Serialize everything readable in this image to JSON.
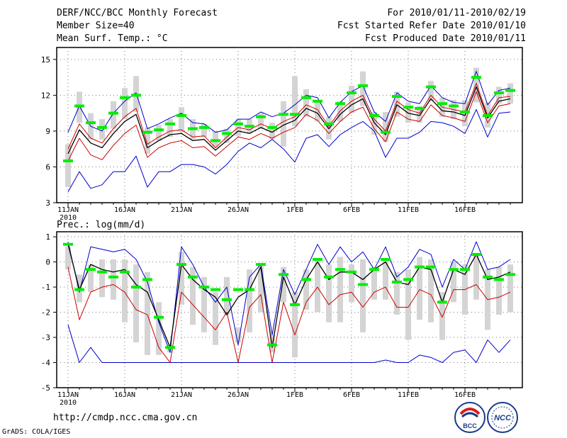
{
  "header": {
    "title": "DERF/NCC/BCC Monthly Forecast",
    "member": "Member Size=40",
    "variable": "Mean Surf. Temp.: °C",
    "period": "For 2010/01/11-2010/02/19",
    "started": "Fcst Started Refer Date 2010/01/10",
    "produced": "Fcst Produced Date 2010/01/11"
  },
  "footer": {
    "url": "http://cmdp.ncc.cma.gov.cn",
    "credit": "GrADS: COLA/IGES",
    "logo_bcc": "BCC",
    "logo_ncc": "NCC"
  },
  "colors": {
    "ensemble_mean": "#000000",
    "envelope": "#0000cc",
    "percentile": "#cc0000",
    "marker": "#00ee00",
    "box": "#d4d4d4",
    "grid": "#777777"
  },
  "chart_data": [
    {
      "type": "line",
      "title": "Mean Surf. Temp.: °C",
      "xlabel": "",
      "ylabel": "",
      "x_ticks": [
        "11JAN",
        "16JAN",
        "21JAN",
        "26JAN",
        "1FEB",
        "6FEB",
        "11FEB",
        "16FEB"
      ],
      "x_year": "2010",
      "days": 40,
      "ylim": [
        3,
        16
      ],
      "y_ticks": [
        3,
        6,
        9,
        12,
        15
      ],
      "series": [
        {
          "name": "ensemble-max",
          "values": [
            8.9,
            11.1,
            9.4,
            9.0,
            10.5,
            11.5,
            12.2,
            9.2,
            9.6,
            10.1,
            10.5,
            9.7,
            9.6,
            8.9,
            9.1,
            10.0,
            10.0,
            10.6,
            10.2,
            10.5,
            11.2,
            12.0,
            11.8,
            10.1,
            11.4,
            12.3,
            12.8,
            10.6,
            9.8,
            12.2,
            11.5,
            11.3,
            12.8,
            11.8,
            11.4,
            11.3,
            14.0,
            11.2,
            12.4,
            12.6
          ]
        },
        {
          "name": "percentile-high",
          "values": [
            7.5,
            9.6,
            8.4,
            8.0,
            9.2,
            10.2,
            10.9,
            7.9,
            8.5,
            9.0,
            9.1,
            8.5,
            8.6,
            7.6,
            8.5,
            9.3,
            9.1,
            9.6,
            9.2,
            9.8,
            10.2,
            11.2,
            10.8,
            9.4,
            10.7,
            11.5,
            12.0,
            10.0,
            9.0,
            11.5,
            10.8,
            10.5,
            12.0,
            11.0,
            10.8,
            10.6,
            13.0,
            10.3,
            11.8,
            11.9
          ]
        },
        {
          "name": "ensemble-mean",
          "values": [
            7.1,
            9.1,
            8.0,
            7.6,
            8.8,
            9.8,
            10.4,
            7.6,
            8.2,
            8.7,
            8.8,
            8.2,
            8.3,
            7.4,
            8.2,
            9.0,
            8.8,
            9.3,
            8.9,
            9.5,
            9.9,
            10.9,
            10.5,
            9.2,
            10.4,
            11.2,
            11.7,
            9.7,
            8.7,
            11.2,
            10.5,
            10.3,
            11.7,
            10.7,
            10.6,
            10.3,
            12.7,
            10.1,
            11.5,
            11.7
          ]
        },
        {
          "name": "percentile-low",
          "values": [
            6.5,
            8.4,
            7.0,
            6.6,
            7.8,
            8.8,
            9.5,
            6.8,
            7.6,
            8.0,
            8.2,
            7.6,
            7.7,
            6.9,
            7.7,
            8.5,
            8.3,
            8.8,
            8.4,
            8.9,
            9.3,
            10.4,
            9.9,
            8.8,
            9.8,
            10.6,
            11.0,
            9.2,
            8.1,
            10.6,
            10.0,
            9.8,
            11.2,
            10.3,
            10.1,
            9.8,
            12.3,
            9.7,
            11.1,
            11.3
          ]
        },
        {
          "name": "ensemble-min",
          "values": [
            3.9,
            5.6,
            4.2,
            4.5,
            5.6,
            5.6,
            6.9,
            4.3,
            5.6,
            5.6,
            6.2,
            6.2,
            6.0,
            5.4,
            6.2,
            7.3,
            8.0,
            7.6,
            8.3,
            7.5,
            6.4,
            8.4,
            8.7,
            7.7,
            8.7,
            9.3,
            9.8,
            9.0,
            6.8,
            8.4,
            8.4,
            8.9,
            9.8,
            9.7,
            9.4,
            8.8,
            10.8,
            8.5,
            10.5,
            10.6
          ]
        },
        {
          "name": "box-high",
          "values": [
            7.9,
            12.3,
            10.5,
            10.0,
            11.5,
            12.6,
            13.6,
            9.3,
            9.5,
            10.0,
            11.0,
            10.0,
            9.6,
            9.0,
            9.2,
            10.0,
            10.0,
            10.5,
            9.7,
            11.5,
            13.6,
            12.5,
            11.6,
            10.2,
            11.5,
            12.8,
            14.0,
            10.6,
            10.6,
            12.3,
            11.4,
            11.1,
            13.2,
            11.8,
            11.6,
            11.6,
            14.3,
            11.4,
            12.7,
            13.0
          ]
        },
        {
          "name": "box-low",
          "values": [
            4.3,
            9.7,
            8.3,
            8.3,
            9.2,
            10.0,
            10.6,
            7.1,
            8.2,
            8.5,
            8.9,
            8.3,
            8.5,
            7.7,
            8.0,
            8.6,
            8.8,
            9.2,
            8.3,
            7.7,
            9.4,
            10.2,
            9.8,
            8.3,
            9.8,
            10.5,
            11.1,
            8.7,
            8.1,
            10.2,
            9.7,
            9.7,
            11.5,
            10.2,
            10.0,
            9.4,
            11.4,
            9.3,
            11.3,
            11.3
          ]
        },
        {
          "name": "observed-marker",
          "values": [
            6.5,
            11.1,
            9.7,
            9.3,
            10.5,
            11.8,
            12.0,
            8.9,
            9.1,
            9.6,
            10.3,
            9.2,
            9.3,
            8.2,
            8.8,
            9.6,
            9.4,
            10.2,
            9.3,
            10.4,
            10.4,
            11.8,
            11.5,
            9.6,
            11.3,
            12.2,
            12.8,
            10.3,
            8.9,
            11.9,
            11.0,
            10.9,
            12.7,
            11.3,
            11.1,
            10.6,
            13.5,
            10.3,
            12.2,
            12.4
          ]
        }
      ]
    },
    {
      "type": "line",
      "title": "Prec.: log(mm/d)",
      "xlabel": "",
      "ylabel": "",
      "x_ticks": [
        "11JAN",
        "16JAN",
        "21JAN",
        "26JAN",
        "1FEB",
        "6FEB",
        "11FEB",
        "16FEB"
      ],
      "x_year": "2010",
      "days": 40,
      "ylim": [
        -5,
        1.2
      ],
      "y_ticks": [
        -5,
        -4,
        -3,
        -2,
        -1,
        0,
        1
      ],
      "series": [
        {
          "name": "ensemble-max",
          "values": [
            0.8,
            -1.2,
            0.6,
            0.5,
            0.4,
            0.5,
            0.1,
            -0.8,
            -2.4,
            -3.6,
            0.6,
            -0.1,
            -1.0,
            -1.6,
            -1.0,
            -3.3,
            -0.6,
            -0.1,
            -2.9,
            -0.3,
            -1.3,
            -0.3,
            0.7,
            -0.1,
            0.6,
            0.0,
            0.4,
            -0.3,
            0.6,
            -0.6,
            -0.2,
            0.5,
            0.3,
            -1.0,
            0.1,
            -0.3,
            0.8,
            -0.3,
            -0.2,
            0.1
          ]
        },
        {
          "name": "ensemble-mean",
          "values": [
            0.7,
            -1.1,
            -0.1,
            -0.3,
            -0.4,
            -0.3,
            -0.9,
            -1.2,
            -2.3,
            -3.4,
            -0.1,
            -0.7,
            -1.1,
            -1.4,
            -2.1,
            -1.4,
            -1.1,
            -0.2,
            -3.4,
            -0.6,
            -1.7,
            -0.7,
            0.0,
            -0.7,
            -0.4,
            -0.4,
            -0.7,
            -0.3,
            0.0,
            -0.8,
            -0.9,
            -0.2,
            -0.3,
            -1.6,
            -0.3,
            -0.5,
            0.3,
            -0.7,
            -0.6,
            -0.4
          ]
        },
        {
          "name": "percentile-low",
          "values": [
            -0.2,
            -2.3,
            -1.2,
            -1.0,
            -0.9,
            -1.2,
            -1.9,
            -2.1,
            -3.4,
            -4.0,
            -1.2,
            -1.7,
            -2.2,
            -2.7,
            -2.0,
            -4.0,
            -1.8,
            -1.3,
            -4.0,
            -1.6,
            -2.9,
            -1.6,
            -1.0,
            -1.7,
            -1.3,
            -1.2,
            -1.8,
            -1.2,
            -1.0,
            -1.8,
            -1.8,
            -1.1,
            -1.3,
            -2.2,
            -1.1,
            -1.1,
            -0.9,
            -1.5,
            -1.4,
            -1.2
          ]
        },
        {
          "name": "ensemble-min",
          "values": [
            -2.5,
            -4.0,
            -3.4,
            -4.0,
            -4.0,
            -4.0,
            -4.0,
            -4.0,
            -4.0,
            -4.0,
            -4.0,
            -4.0,
            -4.0,
            -4.0,
            -4.0,
            -4.0,
            -4.0,
            -4.0,
            -4.0,
            -4.0,
            -4.0,
            -4.0,
            -4.0,
            -4.0,
            -4.0,
            -4.0,
            -4.0,
            -4.0,
            -3.9,
            -4.0,
            -4.0,
            -3.7,
            -3.8,
            -4.0,
            -3.6,
            -3.5,
            -4.0,
            -3.1,
            -3.6,
            -3.1
          ]
        },
        {
          "name": "box-high",
          "values": [
            0.6,
            -0.5,
            -0.1,
            0.1,
            0.1,
            0.1,
            -0.1,
            -0.4,
            -1.6,
            -3.3,
            0.4,
            -0.2,
            -0.6,
            -1.2,
            -0.6,
            -2.6,
            -0.3,
            -0.1,
            -2.9,
            -0.2,
            -1.2,
            -0.3,
            0.1,
            -0.1,
            0.2,
            -0.1,
            0.1,
            -0.2,
            0.1,
            -0.4,
            -0.3,
            0.2,
            0.1,
            -1.2,
            0.0,
            -0.1,
            0.3,
            -0.3,
            -0.2,
            -0.1
          ]
        },
        {
          "name": "box-low",
          "values": [
            -0.3,
            -1.6,
            -1.2,
            -1.4,
            -1.5,
            -2.4,
            -3.2,
            -3.7,
            -3.7,
            -3.6,
            -1.7,
            -2.5,
            -2.8,
            -3.3,
            -2.1,
            -3.2,
            -2.8,
            -2.0,
            -3.6,
            -1.6,
            -3.8,
            -1.9,
            -2.0,
            -2.4,
            -2.4,
            -1.6,
            -2.8,
            -1.5,
            -1.5,
            -2.1,
            -3.1,
            -2.3,
            -2.4,
            -3.1,
            -1.6,
            -2.1,
            -1.5,
            -2.7,
            -2.1,
            -2.0
          ]
        },
        {
          "name": "observed-marker",
          "values": [
            0.7,
            -1.1,
            -0.3,
            -0.4,
            -0.6,
            -0.4,
            -1.0,
            -0.7,
            -2.2,
            -3.4,
            -0.1,
            -0.6,
            -1.0,
            -1.1,
            -1.5,
            -1.1,
            -1.1,
            -0.1,
            -3.3,
            -0.5,
            -1.7,
            -0.7,
            0.1,
            -0.6,
            -0.3,
            -0.4,
            -0.9,
            -0.3,
            0.1,
            -0.8,
            -0.7,
            -0.2,
            -0.2,
            -1.6,
            -0.3,
            -0.3,
            0.3,
            -0.6,
            -0.7,
            -0.5
          ]
        }
      ]
    }
  ]
}
